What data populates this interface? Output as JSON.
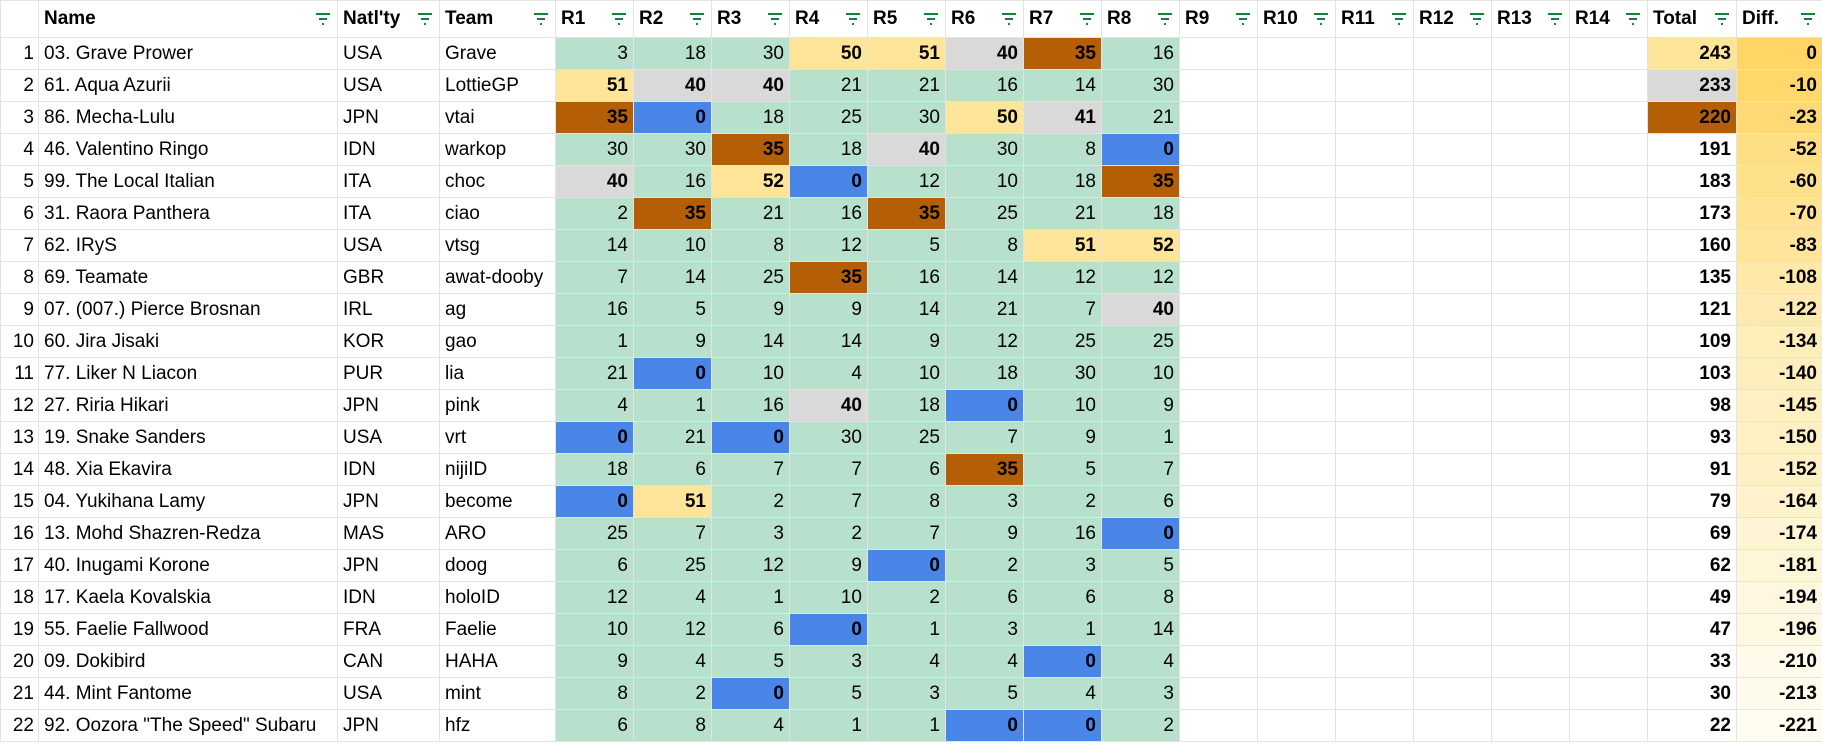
{
  "columns": [
    "Name",
    "Natl'ty",
    "Team",
    "R1",
    "R2",
    "R3",
    "R4",
    "R5",
    "R6",
    "R7",
    "R8",
    "R9",
    "R10",
    "R11",
    "R12",
    "R13",
    "R14",
    "Total",
    "Diff."
  ],
  "rows": [
    {
      "no": 1,
      "name": "03. Grave Prower",
      "nat": "USA",
      "team": "Grave",
      "results": [
        3,
        18,
        30,
        50,
        51,
        40,
        35,
        16
      ],
      "result_colors": [
        null,
        null,
        null,
        "#ffe599",
        "#ffe599",
        "#d9d9d9",
        "#b45f06",
        null
      ],
      "total": 243,
      "total_color": "#ffe599",
      "diff": 0
    },
    {
      "no": 2,
      "name": "61. Aqua Azurii",
      "nat": "USA",
      "team": "LottieGP",
      "results": [
        51,
        40,
        40,
        21,
        21,
        16,
        14,
        30
      ],
      "result_colors": [
        "#ffe599",
        "#d9d9d9",
        "#d9d9d9",
        null,
        null,
        null,
        null,
        null
      ],
      "total": 233,
      "total_color": "#d9d9d9",
      "diff": -10
    },
    {
      "no": 3,
      "name": "86. Mecha-Lulu",
      "nat": "JPN",
      "team": "vtai",
      "results": [
        35,
        0,
        18,
        25,
        30,
        50,
        41,
        21
      ],
      "result_colors": [
        "#b45f06",
        "#4a86e8",
        null,
        null,
        null,
        "#ffe599",
        "#d9d9d9",
        null
      ],
      "total": 220,
      "total_color": "#b45f06",
      "diff": -23
    },
    {
      "no": 4,
      "name": "46. Valentino Ringo",
      "nat": "IDN",
      "team": "warkop",
      "results": [
        30,
        30,
        35,
        18,
        40,
        30,
        8,
        0
      ],
      "result_colors": [
        null,
        null,
        "#b45f06",
        null,
        "#d9d9d9",
        null,
        null,
        "#4a86e8"
      ],
      "total": 191,
      "diff": -52
    },
    {
      "no": 5,
      "name": "99. The Local Italian",
      "nat": "ITA",
      "team": "choc",
      "results": [
        40,
        16,
        52,
        0,
        12,
        10,
        18,
        35
      ],
      "result_colors": [
        "#d9d9d9",
        null,
        "#ffe599",
        "#4a86e8",
        null,
        null,
        null,
        "#b45f06"
      ],
      "total": 183,
      "diff": -60
    },
    {
      "no": 6,
      "name": "31. Raora Panthera",
      "nat": "ITA",
      "team": "ciao",
      "results": [
        2,
        35,
        21,
        16,
        35,
        25,
        21,
        18
      ],
      "result_colors": [
        null,
        "#b45f06",
        null,
        null,
        "#b45f06",
        null,
        null,
        null
      ],
      "total": 173,
      "diff": -70
    },
    {
      "no": 7,
      "name": "62. IRyS",
      "nat": "USA",
      "team": "vtsg",
      "results": [
        14,
        10,
        8,
        12,
        5,
        8,
        51,
        52
      ],
      "result_colors": [
        null,
        null,
        null,
        null,
        null,
        null,
        "#ffe599",
        "#ffe599"
      ],
      "total": 160,
      "diff": -83
    },
    {
      "no": 8,
      "name": "69. Teamate",
      "nat": "GBR",
      "team": "awat-dooby",
      "results": [
        7,
        14,
        25,
        35,
        16,
        14,
        12,
        12
      ],
      "result_colors": [
        null,
        null,
        null,
        "#b45f06",
        null,
        null,
        null,
        null
      ],
      "total": 135,
      "diff": -108
    },
    {
      "no": 9,
      "name": "07. (007.) Pierce Brosnan",
      "nat": "IRL",
      "team": "ag",
      "results": [
        16,
        5,
        9,
        9,
        14,
        21,
        7,
        40
      ],
      "result_colors": [
        null,
        null,
        null,
        null,
        null,
        null,
        null,
        "#d9d9d9"
      ],
      "total": 121,
      "diff": -122
    },
    {
      "no": 10,
      "name": "60. Jira Jisaki",
      "nat": "KOR",
      "team": "gao",
      "results": [
        1,
        9,
        14,
        14,
        9,
        12,
        25,
        25
      ],
      "result_colors": [
        null,
        null,
        null,
        null,
        null,
        null,
        null,
        null
      ],
      "total": 109,
      "diff": -134
    },
    {
      "no": 11,
      "name": "77. Liker N Liacon",
      "nat": "PUR",
      "team": "lia",
      "results": [
        21,
        0,
        10,
        4,
        10,
        18,
        30,
        10
      ],
      "result_colors": [
        null,
        "#4a86e8",
        null,
        null,
        null,
        null,
        null,
        null
      ],
      "total": 103,
      "diff": -140
    },
    {
      "no": 12,
      "name": "27. Riria Hikari",
      "nat": "JPN",
      "team": "pink",
      "results": [
        4,
        1,
        16,
        40,
        18,
        0,
        10,
        9
      ],
      "result_colors": [
        null,
        null,
        null,
        "#d9d9d9",
        null,
        "#4a86e8",
        null,
        null
      ],
      "total": 98,
      "diff": -145
    },
    {
      "no": 13,
      "name": "19. Snake Sanders",
      "nat": "USA",
      "team": "vrt",
      "results": [
        0,
        21,
        0,
        30,
        25,
        7,
        9,
        1
      ],
      "result_colors": [
        "#4a86e8",
        null,
        "#4a86e8",
        null,
        null,
        null,
        null,
        null
      ],
      "total": 93,
      "diff": -150
    },
    {
      "no": 14,
      "name": "48. Xia Ekavira",
      "nat": "IDN",
      "team": "nijiID",
      "results": [
        18,
        6,
        7,
        7,
        6,
        35,
        5,
        7
      ],
      "result_colors": [
        null,
        null,
        null,
        null,
        null,
        "#b45f06",
        null,
        null
      ],
      "total": 91,
      "diff": -152
    },
    {
      "no": 15,
      "name": "04. Yukihana Lamy",
      "nat": "JPN",
      "team": "become",
      "results": [
        0,
        51,
        2,
        7,
        8,
        3,
        2,
        6
      ],
      "result_colors": [
        "#4a86e8",
        "#ffe599",
        null,
        null,
        null,
        null,
        null,
        null
      ],
      "total": 79,
      "diff": -164
    },
    {
      "no": 16,
      "name": "13. Mohd Shazren-Redza",
      "nat": "MAS",
      "team": "ARO",
      "results": [
        25,
        7,
        3,
        2,
        7,
        9,
        16,
        0
      ],
      "result_colors": [
        null,
        null,
        null,
        null,
        null,
        null,
        null,
        "#4a86e8"
      ],
      "total": 69,
      "diff": -174
    },
    {
      "no": 17,
      "name": "40. Inugami Korone",
      "nat": "JPN",
      "team": "doog",
      "results": [
        6,
        25,
        12,
        9,
        0,
        2,
        3,
        5
      ],
      "result_colors": [
        null,
        null,
        null,
        null,
        "#4a86e8",
        null,
        null,
        null
      ],
      "total": 62,
      "diff": -181
    },
    {
      "no": 18,
      "name": "17. Kaela Kovalskia",
      "nat": "IDN",
      "team": "holoID",
      "results": [
        12,
        4,
        1,
        10,
        2,
        6,
        6,
        8
      ],
      "result_colors": [
        null,
        null,
        null,
        null,
        null,
        null,
        null,
        null
      ],
      "total": 49,
      "diff": -194
    },
    {
      "no": 19,
      "name": "55. Faelie Fallwood",
      "nat": "FRA",
      "team": "Faelie",
      "results": [
        10,
        12,
        6,
        0,
        1,
        3,
        1,
        14
      ],
      "result_colors": [
        null,
        null,
        null,
        "#4a86e8",
        null,
        null,
        null,
        null
      ],
      "total": 47,
      "diff": -196
    },
    {
      "no": 20,
      "name": "09. Dokibird",
      "nat": "CAN",
      "team": "HAHA",
      "results": [
        9,
        4,
        5,
        3,
        4,
        4,
        0,
        4
      ],
      "result_colors": [
        null,
        null,
        null,
        null,
        null,
        null,
        "#4a86e8",
        null
      ],
      "total": 33,
      "diff": -210
    },
    {
      "no": 21,
      "name": "44. Mint Fantome",
      "nat": "USA",
      "team": "mint",
      "results": [
        8,
        2,
        0,
        5,
        3,
        5,
        4,
        3
      ],
      "result_colors": [
        null,
        null,
        "#4a86e8",
        null,
        null,
        null,
        null,
        null
      ],
      "total": 30,
      "diff": -213
    },
    {
      "no": 22,
      "name": "92. Oozora \"The Speed\" Subaru",
      "nat": "JPN",
      "team": "hfz",
      "results": [
        6,
        8,
        4,
        1,
        1,
        0,
        0,
        2
      ],
      "result_colors": [
        null,
        null,
        null,
        null,
        null,
        "#4a86e8",
        "#4a86e8",
        null
      ],
      "total": 22,
      "diff": -221
    }
  ]
}
